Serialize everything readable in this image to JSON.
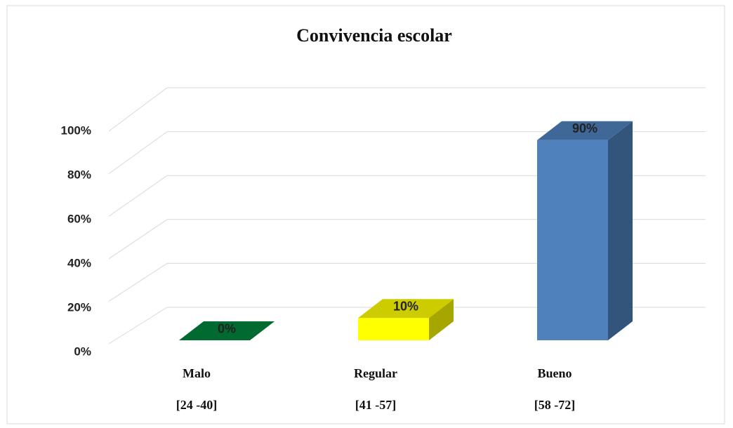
{
  "chart_data": {
    "type": "bar3d",
    "title": "Convivencia escolar",
    "categories": [
      "Malo",
      "Regular",
      "Bueno"
    ],
    "category_ranges": [
      "[24 -40]",
      "[41 -57]",
      "[58 -72]"
    ],
    "values": [
      0,
      10,
      90
    ],
    "value_labels": [
      "0%",
      "10%",
      "90%"
    ],
    "colors": [
      "#00843d",
      "#ffff00",
      "#4f81bd"
    ],
    "ylim": [
      0,
      100
    ],
    "yticks": [
      {
        "value": 0,
        "label": "0%"
      },
      {
        "value": 20,
        "label": "20%"
      },
      {
        "value": 40,
        "label": "40%"
      },
      {
        "value": 60,
        "label": "60%"
      },
      {
        "value": 80,
        "label": "80%"
      },
      {
        "value": 100,
        "label": "100%"
      }
    ],
    "grid": true
  }
}
